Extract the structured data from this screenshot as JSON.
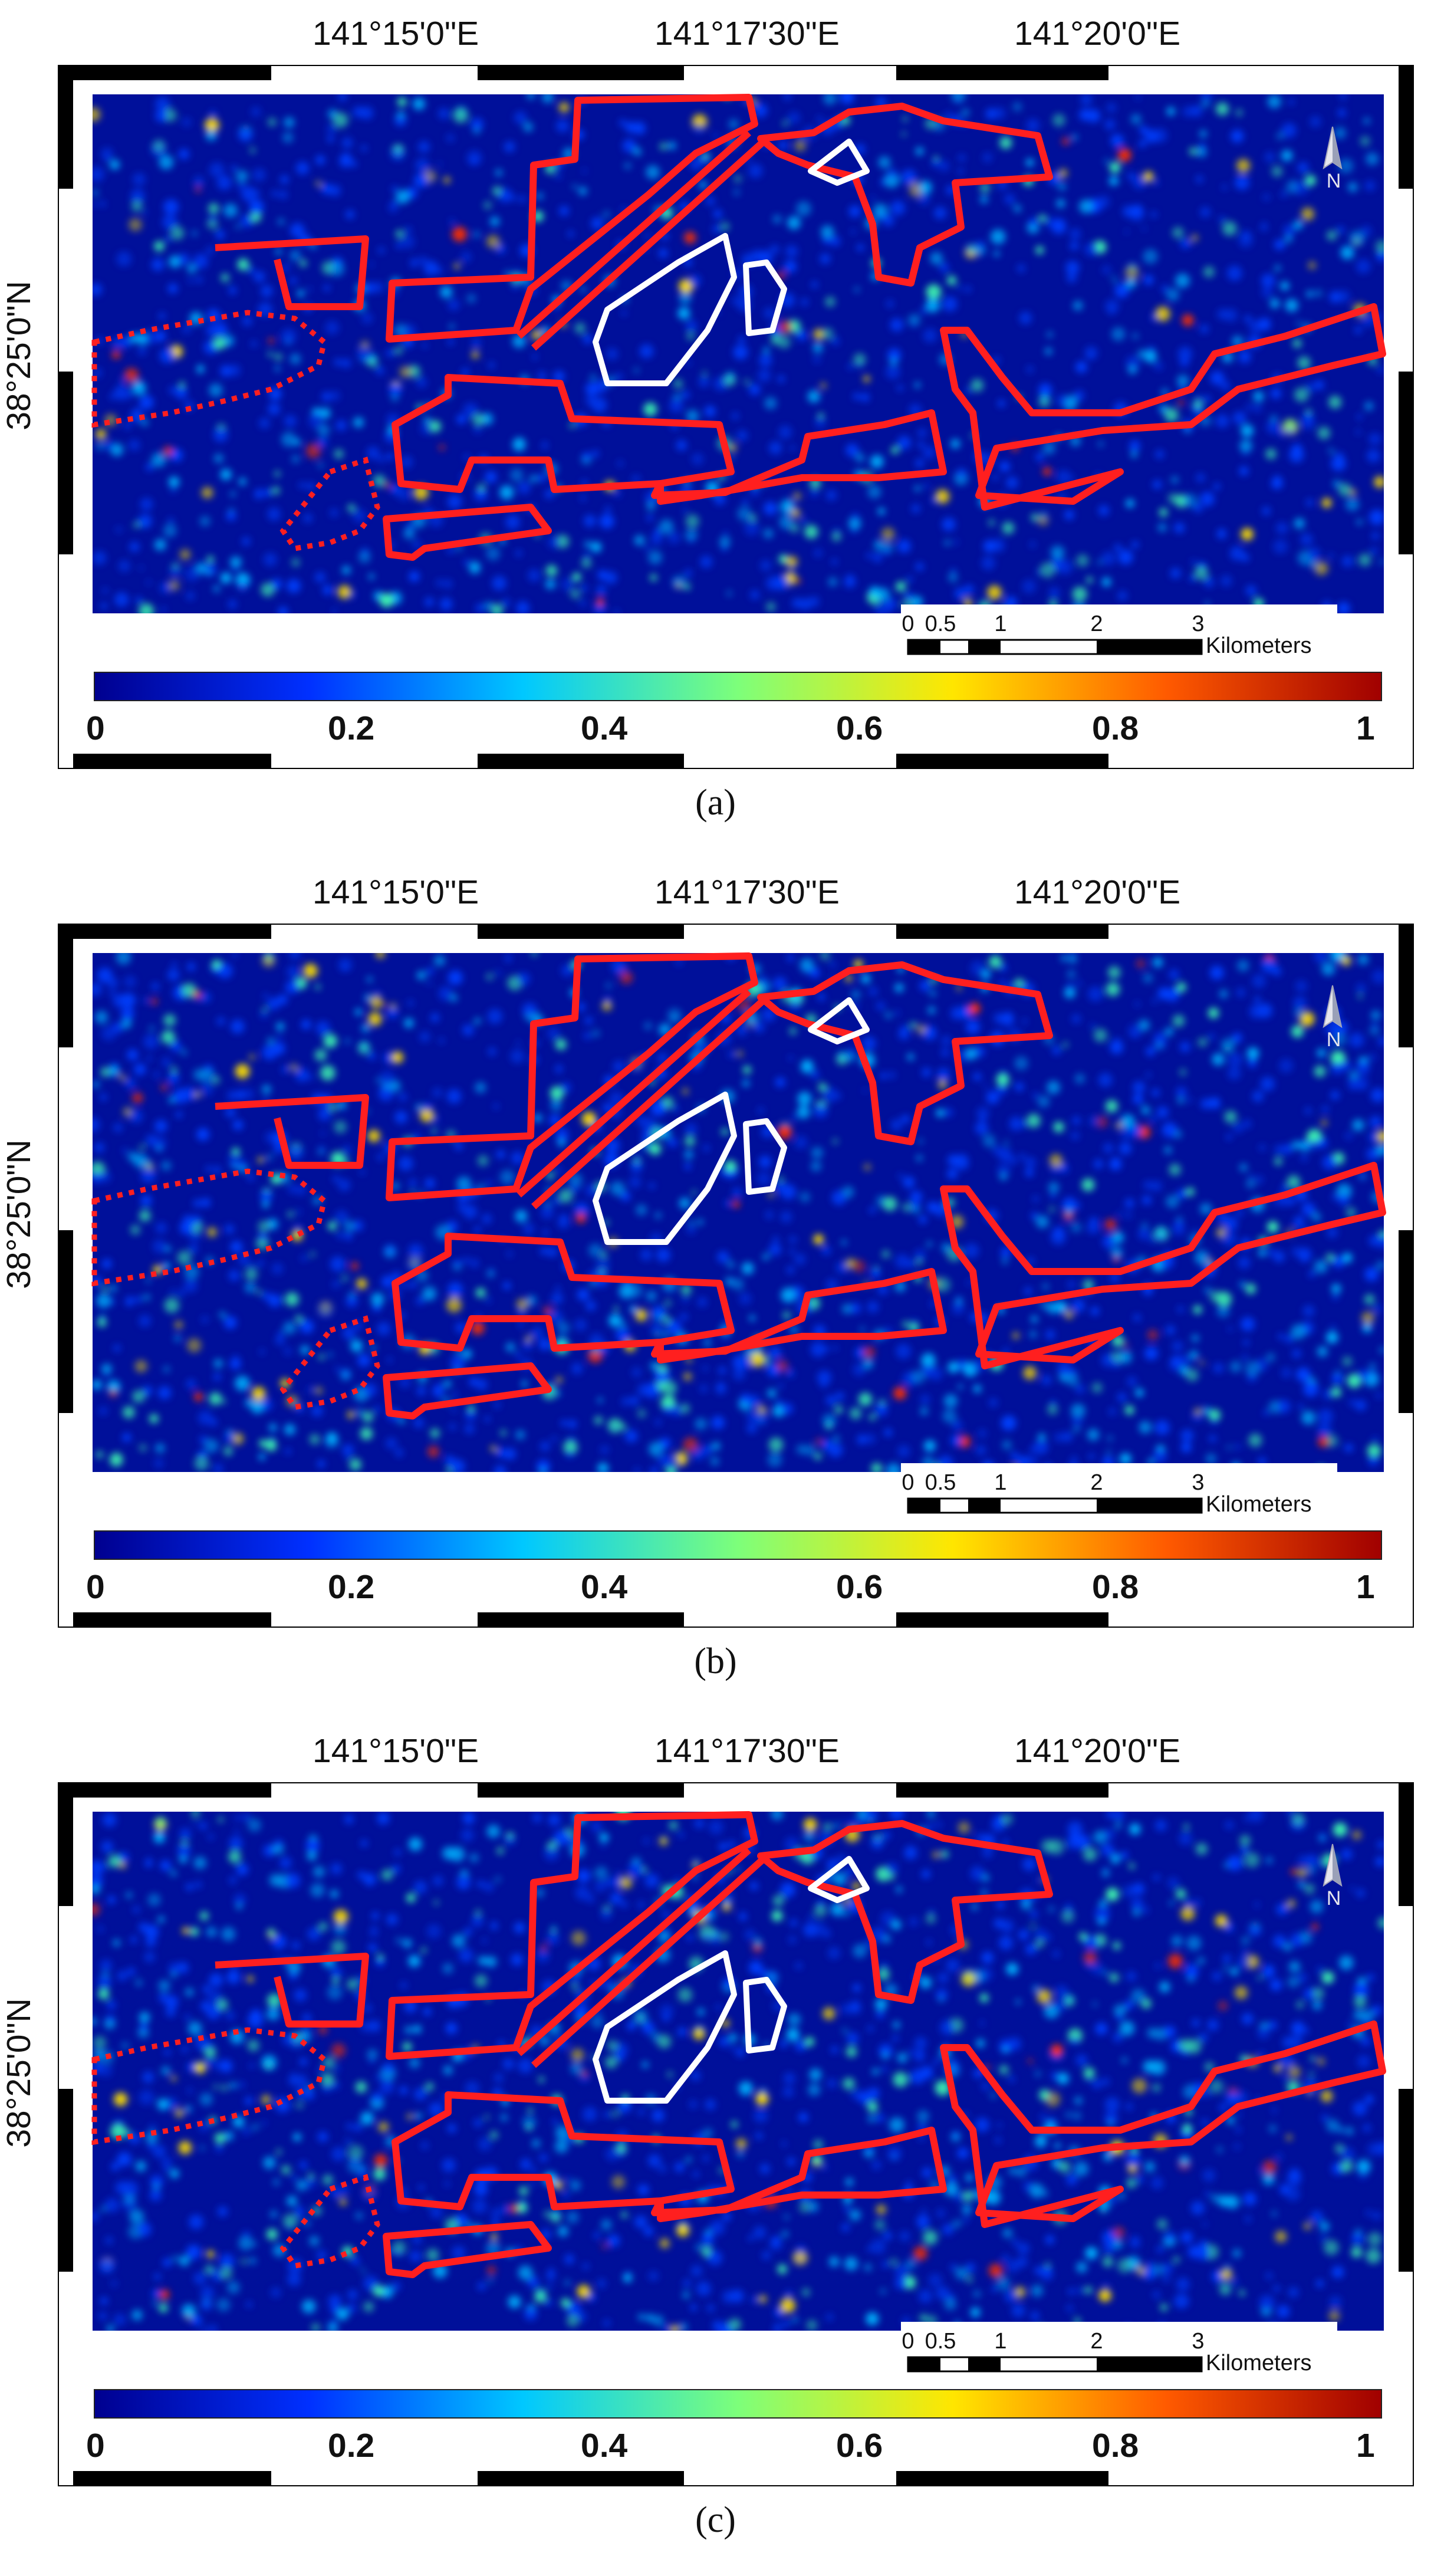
{
  "panels": [
    {
      "caption": "(a)",
      "lon_labels": [
        "141°15'0\"E",
        "141°17'30\"E",
        "141°20'0\"E"
      ],
      "lat_label": "38°25'0\"N",
      "colorbar_ticks": [
        "0",
        "0.2",
        "0.4",
        "0.6",
        "0.8",
        "1"
      ],
      "scale_ticks": [
        "0",
        "0.5",
        "1",
        "2",
        "3"
      ],
      "scale_unit": "Kilometers",
      "north_label": "N",
      "intensity": 0.25
    },
    {
      "caption": "(b)",
      "lon_labels": [
        "141°15'0\"E",
        "141°17'30\"E",
        "141°20'0\"E"
      ],
      "lat_label": "38°25'0\"N",
      "colorbar_ticks": [
        "0",
        "0.2",
        "0.4",
        "0.6",
        "0.8",
        "1"
      ],
      "scale_ticks": [
        "0",
        "0.5",
        "1",
        "2",
        "3"
      ],
      "scale_unit": "Kilometers",
      "north_label": "N",
      "intensity": 0.45
    },
    {
      "caption": "(c)",
      "lon_labels": [
        "141°15'0\"E",
        "141°17'30\"E",
        "141°20'0\"E"
      ],
      "lat_label": "38°25'0\"N",
      "colorbar_ticks": [
        "0",
        "0.2",
        "0.4",
        "0.6",
        "0.8",
        "1"
      ],
      "scale_ticks": [
        "0",
        "0.5",
        "1",
        "2",
        "3"
      ],
      "scale_unit": "Kilometers",
      "north_label": "N",
      "intensity": 0.42
    }
  ],
  "colors": {
    "map_background": "#00109a",
    "outline_red": "#ff1f1f",
    "outline_white": "#ffffff",
    "colormap": [
      "#00008f",
      "#0030ff",
      "#00c8ff",
      "#7dff7a",
      "#ffe600",
      "#ff5a00",
      "#a00000"
    ]
  },
  "icons": {
    "north_arrow": "north-arrow-icon"
  }
}
